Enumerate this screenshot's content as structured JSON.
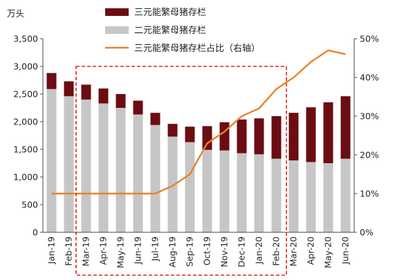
{
  "chart_data": {
    "type": "bar",
    "title": "",
    "y_unit_label": "万头",
    "categories": [
      "Jan-19",
      "Feb-19",
      "Mar-19",
      "Apr-19",
      "May-19",
      "Jun-19",
      "Jul-19",
      "Aug-19",
      "Sep-19",
      "Oct-19",
      "Nov-19",
      "Dec-19",
      "Jan-20",
      "Feb-20",
      "Mar-20",
      "Apr-20",
      "May-20",
      "Jun-20"
    ],
    "series": [
      {
        "name": "三元能繁母猪存栏",
        "type": "bar",
        "stacked": true,
        "color": "#6b0d12",
        "values": [
          290,
          270,
          270,
          270,
          250,
          250,
          220,
          230,
          280,
          430,
          510,
          610,
          650,
          770,
          860,
          990,
          1100,
          1130
        ]
      },
      {
        "name": "二元能繁母猪存栏",
        "type": "bar",
        "stacked": true,
        "color": "#c6c6c6",
        "values": [
          2590,
          2460,
          2400,
          2330,
          2250,
          2130,
          1940,
          1730,
          1630,
          1490,
          1480,
          1430,
          1410,
          1330,
          1300,
          1270,
          1250,
          1330
        ]
      },
      {
        "name": "三元能繁母猪存栏占比（右轴）",
        "type": "line",
        "axis": "right",
        "color": "#e8822a",
        "values": [
          10,
          10,
          10,
          10,
          10,
          10,
          10,
          12,
          15,
          23,
          26,
          30,
          32,
          37,
          40,
          44,
          47,
          46
        ]
      }
    ],
    "y_left": {
      "min": 0,
      "max": 3500,
      "step": 500,
      "ticks": [
        "0",
        "500",
        "1,000",
        "1,500",
        "2,000",
        "2,500",
        "3,000",
        "3,500"
      ]
    },
    "y_right": {
      "min": 0,
      "max": 50,
      "step": 10,
      "ticks": [
        "0%",
        "10%",
        "20%",
        "30%",
        "40%",
        "50%"
      ]
    },
    "highlight_box": {
      "from": "Mar-19",
      "to": "Feb-20",
      "color": "#e0221f"
    },
    "legend_position": "top-right",
    "grid": false
  }
}
